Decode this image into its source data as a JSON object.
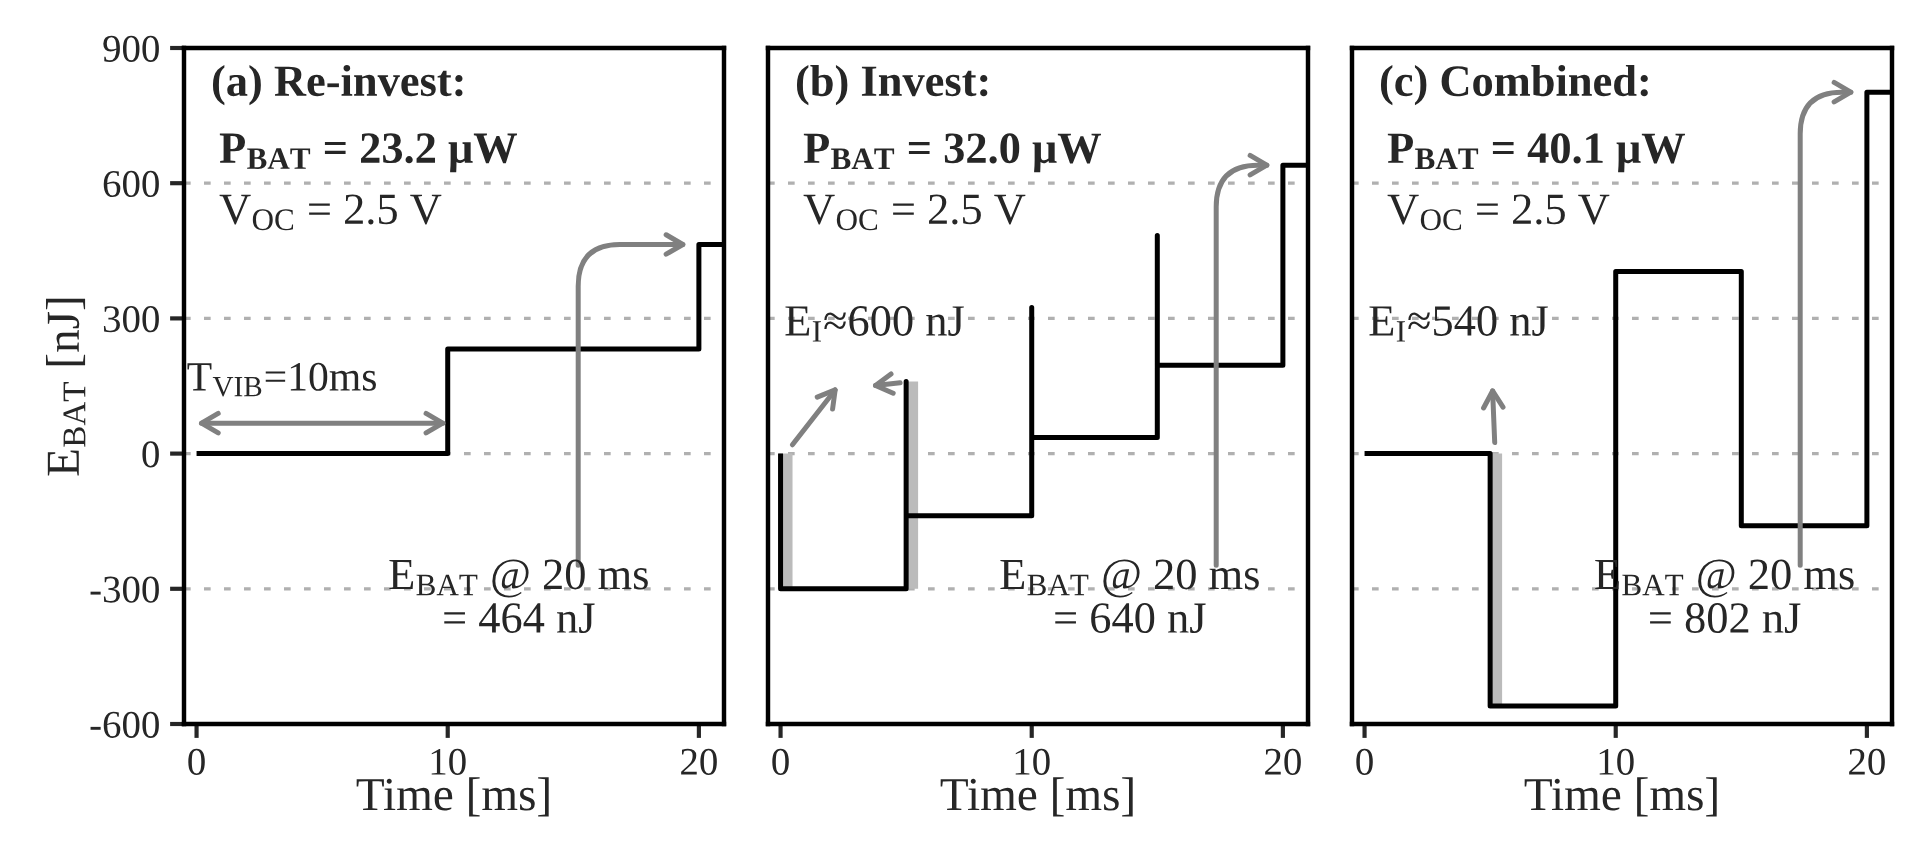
{
  "chart_data": [
    {
      "type": "line",
      "title": "(a) Re-invest:",
      "subtitle": "P$_{BAT}$ = 23.2 μW",
      "xlabel": "Time [ms]",
      "ylabel": "E$_{BAT}$ [nJ]",
      "xlim": [
        -0.5,
        21
      ],
      "ylim": [
        -600,
        900
      ],
      "xticks": [
        0,
        10,
        20
      ],
      "yticks": [
        -600,
        -300,
        0,
        300,
        600,
        900
      ],
      "grid": "y",
      "series": [
        {
          "color": "#000000",
          "x": [
            0,
            10,
            10,
            20,
            20,
            21
          ],
          "values": [
            0,
            0,
            232,
            232,
            464,
            464
          ]
        }
      ],
      "annotations": [
        "V$_{OC}$ = 2.5 V",
        "T$_{VIB}$=10ms",
        "E$_{BAT}$ @ 20 ms\n= 464 nJ"
      ]
    },
    {
      "type": "line",
      "title": "(b) Invest:",
      "subtitle": "P$_{BAT}$ = 32.0 μW",
      "xlabel": "Time [ms]",
      "xlim": [
        -0.5,
        21
      ],
      "ylim": [
        -600,
        900
      ],
      "xticks": [
        0,
        10,
        20
      ],
      "yticks": [
        -600,
        -300,
        0,
        300,
        600,
        900
      ],
      "grid": "y",
      "tick_labels": "x",
      "series": [
        {
          "color": "#bbbbbb",
          "x": [
            0.2,
            0.2,
            2,
            5.2,
            5.2
          ],
          "values": [
            0,
            -300,
            null,
            -300,
            160
          ]
        },
        {
          "color": "#000000",
          "x": [
            0,
            0,
            5,
            5,
            5,
            10,
            10,
            10,
            15,
            15,
            15,
            20,
            20,
            21
          ],
          "values": [
            0,
            -300,
            -300,
            160,
            -138,
            -138,
            324,
            36,
            36,
            484,
            196,
            196,
            640,
            640
          ]
        }
      ],
      "annotations": [
        "V$_{OC}$ = 2.5 V",
        "E$_{I}$≈600 nJ",
        "E$_{BAT}$ @ 20 ms\n= 640 nJ"
      ]
    },
    {
      "type": "line",
      "title": "(c) Combined:",
      "subtitle": "P$_{BAT}$ = 40.1 μW",
      "xlabel": "Time [ms]",
      "xlim": [
        -0.5,
        21
      ],
      "ylim": [
        -600,
        900
      ],
      "xticks": [
        0,
        10,
        20
      ],
      "yticks": [
        -600,
        -300,
        0,
        300,
        600,
        900
      ],
      "grid": "y",
      "tick_labels": "x",
      "series": [
        {
          "color": "#bbbbbb",
          "x": [
            5.2,
            5.2
          ],
          "values": [
            0,
            -560
          ]
        },
        {
          "color": "#000000",
          "x": [
            0,
            5,
            5,
            10,
            10,
            15,
            15,
            20,
            20,
            21
          ],
          "values": [
            0,
            0,
            -560,
            -560,
            404,
            404,
            -160,
            -160,
            802,
            802
          ]
        }
      ],
      "annotations": [
        "V$_{OC}$ = 2.5 V",
        "E$_{I}$≈540 nJ",
        "E$_{BAT}$ @ 20 ms\n= 802 nJ"
      ]
    }
  ]
}
